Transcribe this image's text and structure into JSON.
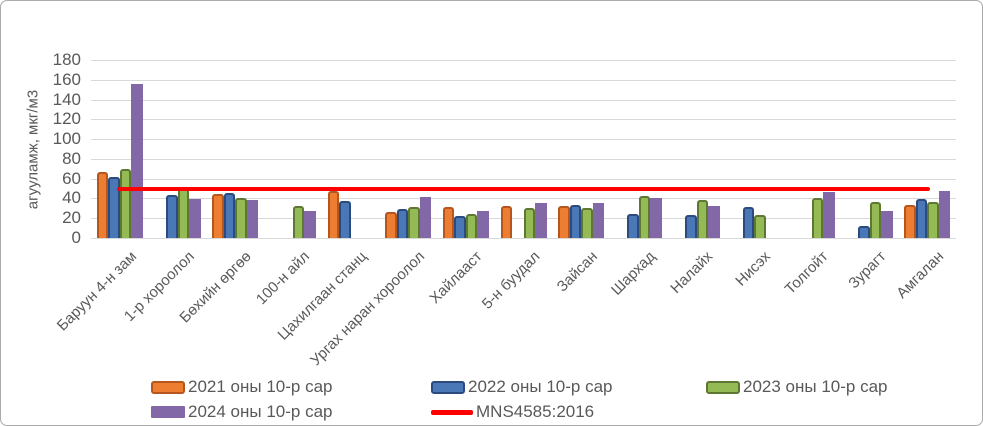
{
  "chart_data": {
    "type": "bar",
    "title": "",
    "xlabel": "",
    "ylabel": "агууламж, мкг/м3",
    "ylim": [
      0,
      180
    ],
    "ytick_step": 20,
    "yticks": [
      0,
      20,
      40,
      60,
      80,
      100,
      120,
      140,
      160,
      180
    ],
    "grid": true,
    "legend_position": "bottom",
    "categories": [
      "Баруун 4-н зам",
      "1-р хороолол",
      "Бөхийн өргөө",
      "100-н айл",
      "Цахилгаан станц",
      "Ургах наран хороолол",
      "Хайлааст",
      "5-н буудал",
      "Зайсан",
      "Шархад",
      "Налайх",
      "Нисэх",
      "Толгойт",
      "Зурагт",
      "Амгалан"
    ],
    "series": [
      {
        "name": "2021 оны 10-р сар",
        "color": "#ED7D31",
        "border_color": "#B4561E",
        "values": [
          67,
          null,
          45,
          null,
          48,
          26,
          31,
          32,
          32,
          null,
          null,
          null,
          null,
          null,
          33
        ]
      },
      {
        "name": "2022 оны 10-р сар",
        "color": "#4A77B5",
        "border_color": "#2B4A7D",
        "values": [
          62,
          44,
          46,
          null,
          37,
          29,
          22,
          null,
          33,
          24,
          23,
          31,
          null,
          12,
          39
        ]
      },
      {
        "name": "2023 оны 10-р сар",
        "color": "#94BA55",
        "border_color": "#5E7733",
        "values": [
          70,
          52,
          41,
          32,
          null,
          31,
          24,
          30,
          30,
          43,
          38,
          23,
          41,
          36,
          36
        ]
      },
      {
        "name": "2024 оны 10-р сар",
        "color": "#8268A7",
        "border_color": null,
        "values": [
          156,
          39,
          38,
          27,
          null,
          42,
          27,
          35,
          35,
          41,
          32,
          null,
          47,
          27,
          48
        ]
      }
    ],
    "reference_line": {
      "name": "MNS4585:2016",
      "value": 50,
      "color": "#FF0000"
    }
  }
}
